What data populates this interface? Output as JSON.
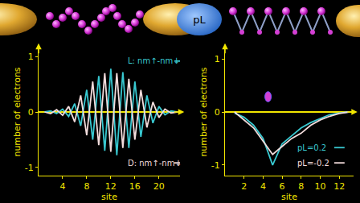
{
  "chart_data": [
    {
      "type": "line",
      "x_label": "site",
      "y_label": "number of electrons",
      "x": [
        1,
        2,
        3,
        4,
        5,
        6,
        7,
        8,
        9,
        10,
        11,
        12,
        13,
        14,
        15,
        16,
        17,
        18,
        19,
        20,
        21,
        22,
        23
      ],
      "series": [
        {
          "name": "L: nm↑-nm↓",
          "color": "#38c8d0",
          "values": [
            0,
            0.02,
            -0.03,
            0.05,
            -0.08,
            0.15,
            -0.25,
            0.4,
            -0.5,
            0.65,
            -0.7,
            0.78,
            -0.78,
            0.72,
            -0.65,
            0.55,
            -0.45,
            0.3,
            -0.2,
            0.1,
            -0.05,
            0.02,
            0
          ]
        },
        {
          "name": "D: nm↑-nm↓",
          "color": "#f2dcdc",
          "values": [
            0,
            -0.03,
            0.04,
            -0.06,
            0.1,
            -0.18,
            0.3,
            -0.42,
            0.55,
            -0.6,
            0.7,
            -0.72,
            0.7,
            -0.65,
            0.6,
            -0.5,
            0.4,
            -0.28,
            0.18,
            -0.1,
            0.05,
            -0.02,
            0
          ]
        }
      ],
      "xlim": [
        0,
        23.5
      ],
      "xticks": [
        4,
        8,
        12,
        16,
        20
      ],
      "ylim": [
        -1.15,
        1.15
      ],
      "yticks": [
        -1,
        0,
        1
      ]
    },
    {
      "type": "line",
      "x_label": "site",
      "y_label": "number of electrons",
      "x": [
        1,
        2,
        3,
        4,
        5,
        6,
        7,
        8,
        9,
        10,
        11,
        12,
        13
      ],
      "series": [
        {
          "name": "pL=0.2",
          "color": "#38c8d0",
          "values": [
            -0.02,
            -0.1,
            -0.25,
            -0.5,
            -1.0,
            -0.6,
            -0.45,
            -0.3,
            -0.2,
            -0.12,
            -0.05,
            -0.02,
            0
          ]
        },
        {
          "name": "pL=-0.2",
          "color": "#f2dcdc",
          "values": [
            0,
            -0.15,
            -0.3,
            -0.55,
            -0.8,
            -0.65,
            -0.5,
            -0.4,
            -0.25,
            -0.15,
            -0.08,
            -0.03,
            0
          ]
        }
      ],
      "xlim": [
        0,
        13.5
      ],
      "xticks": [
        2,
        4,
        6,
        8,
        10,
        12
      ],
      "ylim": [
        -1.2,
        1.2
      ],
      "yticks": [
        -1,
        0,
        1
      ]
    }
  ],
  "diagram": {
    "label": "pL"
  }
}
